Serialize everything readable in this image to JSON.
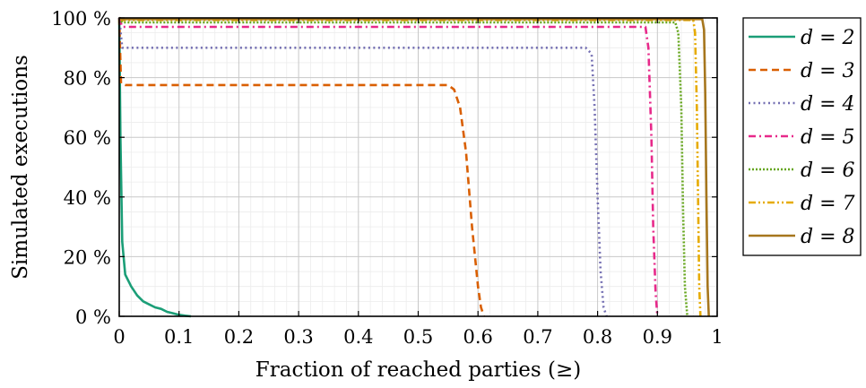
{
  "chart_data": {
    "type": "line",
    "title": "",
    "xlabel": "Fraction of reached parties (≥)",
    "ylabel": "Simulated executions",
    "xlim": [
      0,
      1
    ],
    "ylim": [
      0,
      100
    ],
    "x_ticks": [
      "0",
      "0.1",
      "0.2",
      "0.3",
      "0.4",
      "0.5",
      "0.6",
      "0.7",
      "0.8",
      "0.9",
      "1"
    ],
    "y_ticks": [
      "0 %",
      "20 %",
      "40 %",
      "60 %",
      "80 %",
      "100 %"
    ],
    "grid": true,
    "minor_grid": true,
    "legend_position": "outside-right",
    "series": [
      {
        "name": "d = 2",
        "color": "#1b9e77",
        "dash": "solid",
        "x": [
          0,
          0.002,
          0.005,
          0.01,
          0.02,
          0.03,
          0.04,
          0.05,
          0.06,
          0.07,
          0.08,
          0.09,
          0.1,
          0.11,
          0.12
        ],
        "y": [
          100,
          60,
          25,
          14,
          10,
          7,
          5,
          4,
          3,
          2.5,
          1.5,
          1,
          0.5,
          0.2,
          0
        ]
      },
      {
        "name": "d = 3",
        "color": "#d95f02",
        "dash": "dashed",
        "x": [
          0,
          0.003,
          0.01,
          0.55,
          0.56,
          0.57,
          0.58,
          0.59,
          0.6,
          0.605,
          0.61
        ],
        "y": [
          100,
          78,
          77.5,
          77.5,
          76,
          70,
          55,
          30,
          10,
          3,
          0
        ]
      },
      {
        "name": "d = 4",
        "color": "#7570b3",
        "dash": "dotted",
        "x": [
          0,
          0.005,
          0.01,
          0.78,
          0.79,
          0.795,
          0.8,
          0.805,
          0.81,
          0.815
        ],
        "y": [
          100,
          90,
          90,
          90,
          88,
          70,
          40,
          15,
          3,
          0
        ]
      },
      {
        "name": "d = 5",
        "color": "#e7298a",
        "dash": "dashdot",
        "x": [
          0,
          0.005,
          0.01,
          0.88,
          0.885,
          0.89,
          0.893,
          0.897,
          0.9
        ],
        "y": [
          100,
          97,
          97,
          97,
          90,
          60,
          30,
          8,
          0
        ]
      },
      {
        "name": "d = 6",
        "color": "#66a61e",
        "dash": "densely-dotted",
        "x": [
          0,
          0.005,
          0.93,
          0.935,
          0.94,
          0.943,
          0.946,
          0.95
        ],
        "y": [
          100,
          98.5,
          98.5,
          95,
          70,
          35,
          10,
          0
        ]
      },
      {
        "name": "d = 7",
        "color": "#e6ab02",
        "dash": "dashdotdot",
        "x": [
          0,
          0.005,
          0.96,
          0.963,
          0.966,
          0.968,
          0.97,
          0.972
        ],
        "y": [
          100,
          99.3,
          99.3,
          95,
          70,
          40,
          10,
          0
        ]
      },
      {
        "name": "d = 8",
        "color": "#a6761d",
        "dash": "solid",
        "x": [
          0,
          0.005,
          0.975,
          0.978,
          0.98,
          0.982,
          0.984,
          0.986
        ],
        "y": [
          100,
          99.6,
          99.6,
          96,
          75,
          40,
          10,
          0
        ]
      }
    ]
  }
}
